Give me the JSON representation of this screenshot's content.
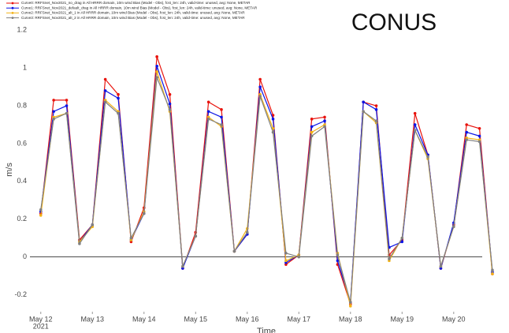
{
  "chart_data": {
    "type": "line",
    "annotation": "CONUS",
    "ylabel": "m/s",
    "xlabel": "Time",
    "x": [
      0,
      0.25,
      0.5,
      0.75,
      1,
      1.25,
      1.5,
      1.75,
      2,
      2.25,
      2.5,
      2.75,
      3,
      3.25,
      3.5,
      3.75,
      4,
      4.25,
      4.5,
      4.75,
      5,
      5.25,
      5.5,
      5.75,
      6,
      6.25,
      6.5,
      6.75,
      7,
      7.25,
      7.5,
      7.75,
      8,
      8.25,
      8.5,
      8.75
    ],
    "series": [
      {
        "name": "Curve0: RRFSnet_Nov2021_no_drag in All HRRR domain, 10m wind Bias (Model - Obs), fcst_len: 24h, valid-time: unused, avg: None, METAR",
        "color": "#e8120c",
        "values": [
          0.23,
          0.83,
          0.83,
          0.09,
          0.17,
          0.94,
          0.86,
          0.08,
          0.26,
          1.06,
          0.86,
          -0.06,
          0.13,
          0.82,
          0.78,
          0.03,
          0.12,
          0.94,
          0.75,
          -0.04,
          0.01,
          0.73,
          0.74,
          -0.04,
          -0.25,
          0.82,
          0.8,
          0.01,
          0.09,
          0.76,
          0.54,
          -0.06,
          0.17,
          0.7,
          0.68,
          -0.09
        ]
      },
      {
        "name": "Curve1: RRFSnet_Nov2021_default_drag in All HRRR domain, 10m wind Bias (Model - Obs), fcst_len: 24h, valid-time: unused, avg: None, METAR",
        "color": "#0a14e6",
        "values": [
          0.24,
          0.77,
          0.8,
          0.08,
          0.17,
          0.88,
          0.84,
          0.09,
          0.23,
          1.01,
          0.81,
          -0.06,
          0.11,
          0.77,
          0.74,
          0.03,
          0.12,
          0.9,
          0.73,
          -0.03,
          0.01,
          0.69,
          0.72,
          -0.02,
          -0.24,
          0.82,
          0.78,
          0.05,
          0.08,
          0.7,
          0.54,
          -0.06,
          0.18,
          0.66,
          0.64,
          -0.08
        ]
      },
      {
        "name": "Curve2: RRFSnet_Nov2021_alt_1 in All HRRR domain, 10m wind Bias (Model - Obs), fcst_len: 24h, valid-time: unused, avg: None, METAR",
        "color": "#f2b318",
        "values": [
          0.22,
          0.74,
          0.76,
          0.08,
          0.16,
          0.83,
          0.77,
          0.09,
          0.24,
          0.98,
          0.77,
          -0.05,
          0.11,
          0.74,
          0.69,
          0.03,
          0.15,
          0.86,
          0.68,
          -0.02,
          0.01,
          0.66,
          0.7,
          0.02,
          -0.26,
          0.77,
          0.71,
          -0.02,
          0.1,
          0.67,
          0.52,
          -0.05,
          0.16,
          0.63,
          0.62,
          -0.09
        ]
      },
      {
        "name": "Curve3: RRFSnet_Nov2021_alt_2 in All HRRR domain, 10m wind Bias (Model - Obs), fcst_len: 24h, valid-time: unused, avg: None, METAR",
        "color": "#808080",
        "values": [
          0.25,
          0.73,
          0.76,
          0.07,
          0.17,
          0.82,
          0.76,
          0.1,
          0.23,
          0.95,
          0.78,
          -0.05,
          0.11,
          0.73,
          0.7,
          0.03,
          0.13,
          0.85,
          0.66,
          0.02,
          0.0,
          0.64,
          0.69,
          0.01,
          -0.24,
          0.77,
          0.72,
          -0.01,
          0.1,
          0.67,
          0.53,
          -0.05,
          0.16,
          0.62,
          0.61,
          -0.07
        ]
      }
    ],
    "xlim": [
      -0.21,
      8.98
    ],
    "xticks": [
      {
        "value": 0,
        "label": "May 12"
      },
      {
        "value": 1,
        "label": "May 13"
      },
      {
        "value": 2,
        "label": "May 14"
      },
      {
        "value": 3,
        "label": "May 15"
      },
      {
        "value": 4,
        "label": "May 16"
      },
      {
        "value": 5,
        "label": "May 17"
      },
      {
        "value": 6,
        "label": "May 18"
      },
      {
        "value": 7,
        "label": "May 19"
      },
      {
        "value": 8,
        "label": "May 20"
      }
    ],
    "xtick_year": "2021",
    "ylim": [
      -0.29,
      1.36
    ],
    "yticks": [
      -0.2,
      0,
      0.2,
      0.4,
      0.6,
      0.8,
      1,
      1.2
    ],
    "zero_line": 0,
    "grid": false,
    "legend": "top-left"
  }
}
